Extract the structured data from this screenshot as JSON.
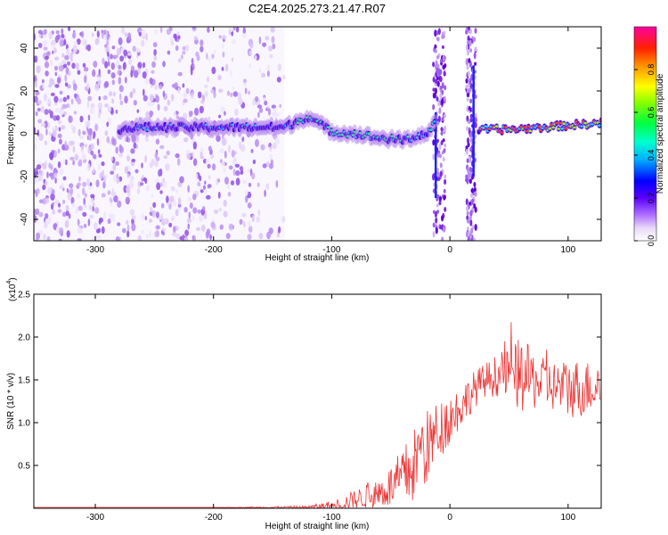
{
  "title": "C2E4.2025.273.21.47.R07",
  "colors": {
    "snr_line": "#ee3333",
    "spectrogram_low": "#e6d6f6",
    "spectrogram_mid": "#7a2ae0",
    "frame": "#000000",
    "grid_dotted": "#888888"
  },
  "chart_data": [
    {
      "type": "heatmap",
      "name": "spectrogram",
      "xlabel": "Height of straight line (km)",
      "ylabel": "Frequency (Hz)",
      "xlim": [
        -352,
        128
      ],
      "ylim": [
        -50,
        50
      ],
      "x_ticks": [
        -300,
        -200,
        -100,
        0,
        100
      ],
      "y_ticks": [
        -40,
        -20,
        0,
        20,
        40
      ],
      "noise_region_km": [
        -352,
        -140
      ],
      "gap_region_km": [
        -140,
        -12
      ],
      "signal_track": {
        "x": [
          -280,
          -260,
          -230,
          -200,
          -170,
          -140,
          -120,
          -100,
          -80,
          -60,
          -40,
          -20,
          -12,
          25,
          50,
          80,
          100,
          128
        ],
        "freq_hz": [
          2,
          3,
          3,
          3,
          3,
          3,
          8,
          1,
          0,
          -2,
          -3,
          0,
          5,
          2,
          2,
          3,
          4,
          5
        ]
      },
      "vertical_artifacts_km": [
        -12,
        20
      ],
      "colorbar": {
        "label": "Normalized spectral amplitude",
        "range": [
          0,
          1
        ],
        "ticks": [
          "0.0",
          "0.2",
          "0.4",
          "0.6",
          "0.8"
        ]
      }
    },
    {
      "type": "line",
      "name": "snr",
      "xlabel": "Height of straight line (km)",
      "ylabel": "SNR (10 * v/v)",
      "scale_label": "(x10",
      "scale_exp": "4",
      "xlim": [
        -352,
        128
      ],
      "ylim": [
        0,
        2.5
      ],
      "x_ticks": [
        -300,
        -200,
        -100,
        0,
        100
      ],
      "y_ticks": [
        "0.5",
        "1.0",
        "1.5",
        "2.0",
        "2.5"
      ],
      "series": [
        {
          "name": "SNR",
          "x": [
            -352,
            -300,
            -250,
            -200,
            -150,
            -120,
            -100,
            -90,
            -80,
            -70,
            -60,
            -50,
            -40,
            -30,
            -20,
            -10,
            0,
            10,
            20,
            30,
            40,
            50,
            60,
            70,
            80,
            90,
            100,
            110,
            120,
            128
          ],
          "mean": [
            0.01,
            0.01,
            0.01,
            0.01,
            0.01,
            0.01,
            0.03,
            0.06,
            0.1,
            0.14,
            0.18,
            0.25,
            0.35,
            0.5,
            0.7,
            0.9,
            1.05,
            1.2,
            1.38,
            1.5,
            1.55,
            1.57,
            1.55,
            1.5,
            1.45,
            1.42,
            1.4,
            1.4,
            1.42,
            1.45
          ],
          "spread": [
            0.0,
            0.0,
            0.0,
            0.0,
            0.01,
            0.02,
            0.06,
            0.08,
            0.12,
            0.14,
            0.18,
            0.25,
            0.35,
            0.45,
            0.45,
            0.35,
            0.3,
            0.25,
            0.22,
            0.2,
            0.25,
            0.3,
            0.45,
            0.35,
            0.3,
            0.3,
            0.35,
            0.35,
            0.3,
            0.3
          ]
        }
      ]
    }
  ]
}
